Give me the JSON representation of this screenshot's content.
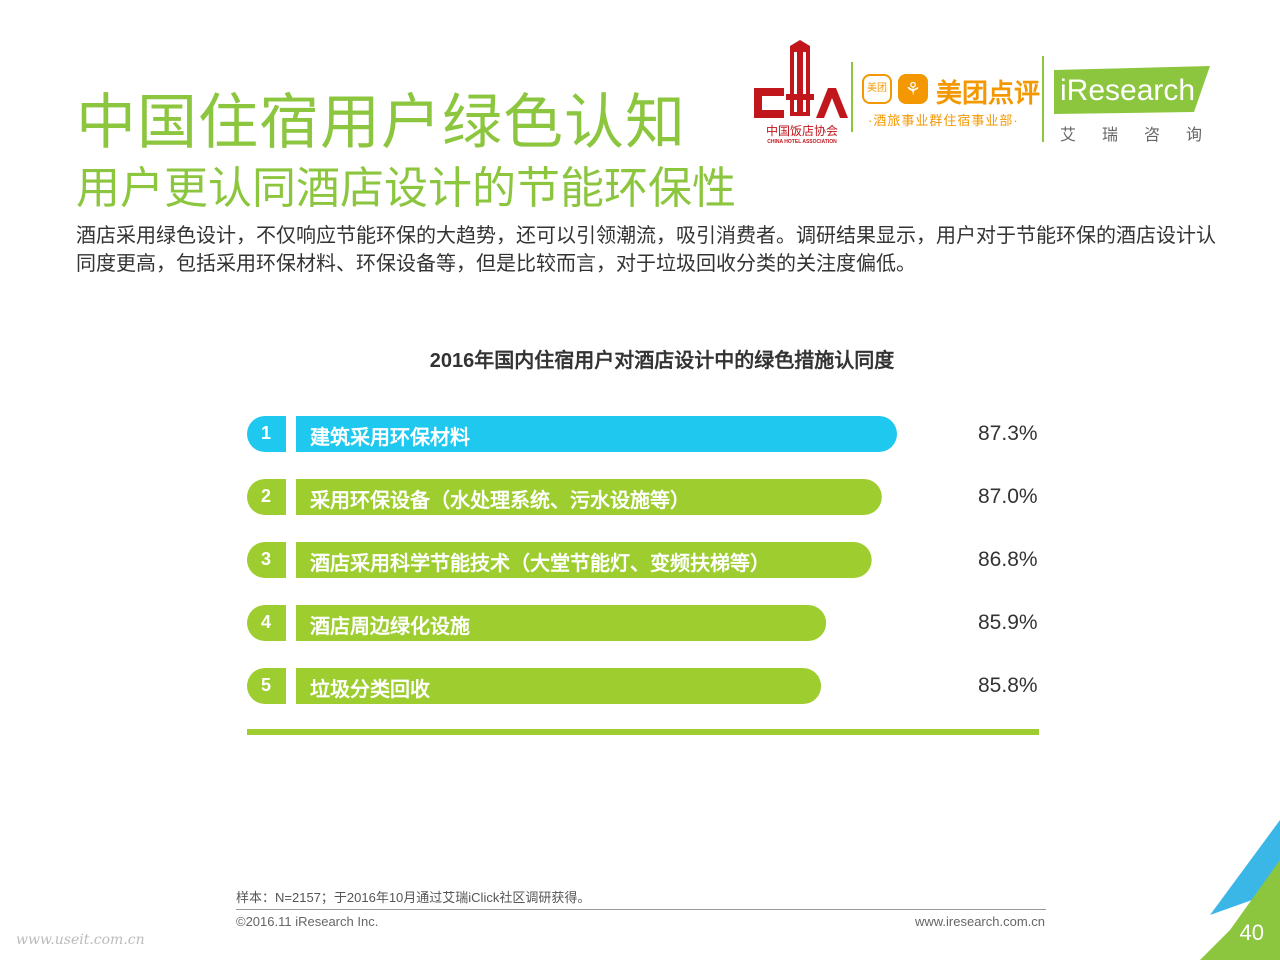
{
  "header": {
    "title": "中国住宿用户绿色认知",
    "subtitle": "用户更认同酒店设计的节能环保性",
    "description": "酒店采用绿色设计，不仅响应节能环保的大趋势，还可以引领潮流，吸引消费者。调研结果显示，用户对于节能环保的酒店设计认同度更高，包括采用环保材料、环保设备等，但是比较而言，对于垃圾回收分类的关注度偏低。"
  },
  "logos": {
    "cha_cn": "中国饭店协会",
    "cha_en": "CHINA HOTEL ASSOCIATION",
    "meituan_name": "美团点评",
    "meituan_icon": "美团",
    "meituan_sub": "·酒旅事业群住宿事业部·",
    "iresearch_en": "iResearch",
    "iresearch_cn": "艾瑞咨询"
  },
  "chart_data": {
    "type": "bar",
    "orientation": "horizontal",
    "title": "2016年国内住宿用户对酒店设计中的绿色措施认同度",
    "ranks": [
      "1",
      "2",
      "3",
      "4",
      "5"
    ],
    "categories": [
      "建筑采用环保材料",
      "采用环保设备（水处理系统、污水设施等）",
      "酒店采用科学节能技术（大堂节能灯、变频扶梯等）",
      "酒店周边绿化设施",
      "垃圾分类回收"
    ],
    "values": [
      87.3,
      87.0,
      86.8,
      85.9,
      85.8
    ],
    "value_labels": [
      "87.3%",
      "87.0%",
      "86.8%",
      "85.9%",
      "85.8%"
    ],
    "colors": [
      "#1ec8ee",
      "#9dcd2f",
      "#9dcd2f",
      "#9dcd2f",
      "#9dcd2f"
    ],
    "grid": false,
    "legend": "none"
  },
  "footer": {
    "note": "样本：N=2157；于2016年10月通过艾瑞iClick社区调研获得。",
    "copyright": "©2016.11 iResearch Inc.",
    "website": "www.iresearch.com.cn",
    "page": "40",
    "watermark": "www.useit.com.cn"
  },
  "colors": {
    "accent_green": "#8cc63f",
    "bar_green": "#9dcd2f",
    "bar_cyan": "#1ec8ee"
  }
}
